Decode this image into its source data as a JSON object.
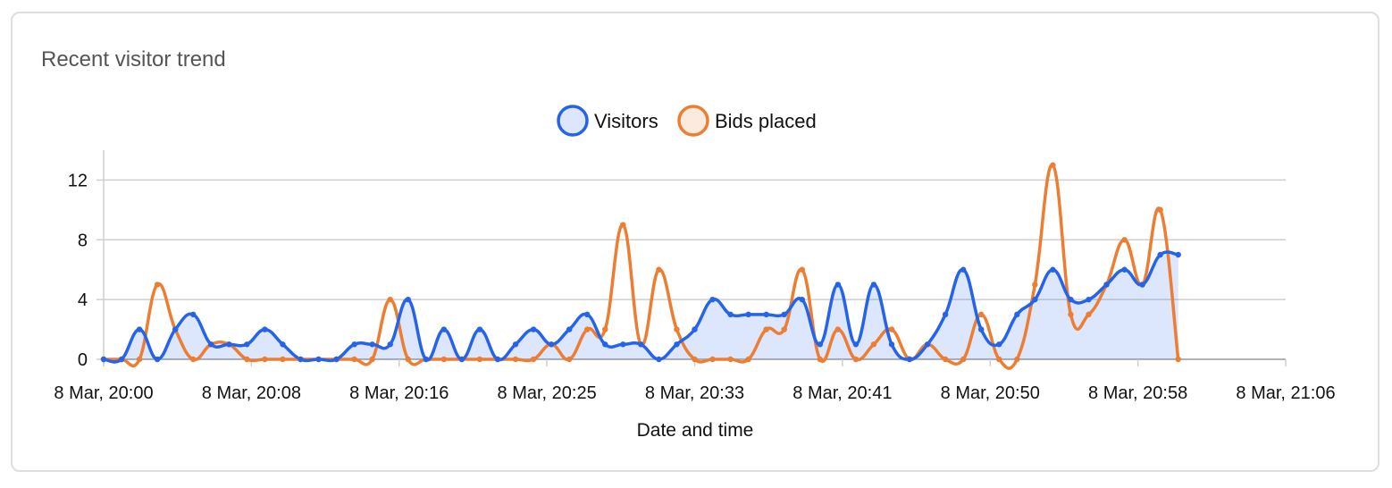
{
  "card": {
    "title": "Recent visitor trend"
  },
  "chart_data": {
    "type": "line",
    "title": "",
    "xlabel": "Date and time",
    "ylabel": "",
    "ylim": [
      0,
      14
    ],
    "xlim": [
      0,
      66
    ],
    "yticks": [
      0,
      4,
      8,
      12
    ],
    "xticks": [
      {
        "x": 0,
        "label": "8 Mar, 20:00"
      },
      {
        "x": 8.25,
        "label": "8 Mar, 20:08"
      },
      {
        "x": 16.5,
        "label": "8 Mar, 20:16"
      },
      {
        "x": 24.75,
        "label": "8 Mar, 20:25"
      },
      {
        "x": 33,
        "label": "8 Mar, 20:33"
      },
      {
        "x": 41.25,
        "label": "8 Mar, 20:41"
      },
      {
        "x": 49.5,
        "label": "8 Mar, 20:50"
      },
      {
        "x": 57.75,
        "label": "8 Mar, 20:58"
      },
      {
        "x": 66,
        "label": "8 Mar, 21:06"
      }
    ],
    "x_unit": "minutes after 8 Mar, 20:00",
    "grid": true,
    "legend": "top-center",
    "series": [
      {
        "name": "Visitors",
        "color": "#2563eb",
        "fill": "rgba(37,99,235,0.16)",
        "filled": true,
        "points": [
          [
            0,
            0
          ],
          [
            1,
            0
          ],
          [
            2,
            2
          ],
          [
            3,
            0
          ],
          [
            4,
            2
          ],
          [
            5,
            3
          ],
          [
            6,
            1
          ],
          [
            7,
            1
          ],
          [
            8,
            1
          ],
          [
            9,
            2
          ],
          [
            10,
            1
          ],
          [
            11,
            0
          ],
          [
            12,
            0
          ],
          [
            13,
            0
          ],
          [
            14,
            1
          ],
          [
            15,
            1
          ],
          [
            16,
            1
          ],
          [
            17,
            4
          ],
          [
            18,
            0
          ],
          [
            19,
            2
          ],
          [
            20,
            0
          ],
          [
            21,
            2
          ],
          [
            22,
            0
          ],
          [
            23,
            1
          ],
          [
            24,
            2
          ],
          [
            25,
            1
          ],
          [
            26,
            2
          ],
          [
            27,
            3
          ],
          [
            28,
            1
          ],
          [
            29,
            1
          ],
          [
            30,
            1
          ],
          [
            31,
            0
          ],
          [
            32,
            1
          ],
          [
            33,
            2
          ],
          [
            34,
            4
          ],
          [
            35,
            3
          ],
          [
            36,
            3
          ],
          [
            37,
            3
          ],
          [
            38,
            3
          ],
          [
            39,
            4
          ],
          [
            40,
            1
          ],
          [
            41,
            5
          ],
          [
            42,
            1
          ],
          [
            43,
            5
          ],
          [
            44,
            1
          ],
          [
            45,
            0
          ],
          [
            46,
            1
          ],
          [
            47,
            3
          ],
          [
            48,
            6
          ],
          [
            49,
            2
          ],
          [
            50,
            1
          ],
          [
            51,
            3
          ],
          [
            52,
            4
          ],
          [
            53,
            6
          ],
          [
            54,
            4
          ],
          [
            55,
            4
          ],
          [
            56,
            5
          ],
          [
            57,
            6
          ],
          [
            58,
            5
          ],
          [
            59,
            7
          ],
          [
            60,
            7
          ]
        ]
      },
      {
        "name": "Bids placed",
        "color": "#ed7d31",
        "fill": "rgba(237,125,49,0.16)",
        "filled": false,
        "points": [
          [
            0,
            0
          ],
          [
            1,
            0
          ],
          [
            2,
            0
          ],
          [
            3,
            5
          ],
          [
            4,
            2
          ],
          [
            5,
            0
          ],
          [
            6,
            1
          ],
          [
            7,
            1
          ],
          [
            8,
            0
          ],
          [
            9,
            0
          ],
          [
            10,
            0
          ],
          [
            11,
            0
          ],
          [
            12,
            0
          ],
          [
            13,
            0
          ],
          [
            14,
            0
          ],
          [
            15,
            0
          ],
          [
            16,
            4
          ],
          [
            17,
            0
          ],
          [
            18,
            0
          ],
          [
            19,
            0
          ],
          [
            20,
            0
          ],
          [
            21,
            0
          ],
          [
            22,
            0
          ],
          [
            23,
            0
          ],
          [
            24,
            0
          ],
          [
            25,
            1
          ],
          [
            26,
            0
          ],
          [
            27,
            2
          ],
          [
            28,
            2
          ],
          [
            29,
            9
          ],
          [
            30,
            1
          ],
          [
            31,
            6
          ],
          [
            32,
            2
          ],
          [
            33,
            0
          ],
          [
            34,
            0
          ],
          [
            35,
            0
          ],
          [
            36,
            0
          ],
          [
            37,
            2
          ],
          [
            38,
            2
          ],
          [
            39,
            6
          ],
          [
            40,
            0
          ],
          [
            41,
            2
          ],
          [
            42,
            0
          ],
          [
            43,
            1
          ],
          [
            44,
            2
          ],
          [
            45,
            0
          ],
          [
            46,
            1
          ],
          [
            47,
            0
          ],
          [
            48,
            0
          ],
          [
            49,
            3
          ],
          [
            50,
            0
          ],
          [
            51,
            0
          ],
          [
            52,
            5
          ],
          [
            53,
            13
          ],
          [
            54,
            3
          ],
          [
            55,
            3
          ],
          [
            56,
            5
          ],
          [
            57,
            8
          ],
          [
            58,
            5
          ],
          [
            59,
            10
          ],
          [
            60,
            0
          ]
        ]
      }
    ]
  }
}
